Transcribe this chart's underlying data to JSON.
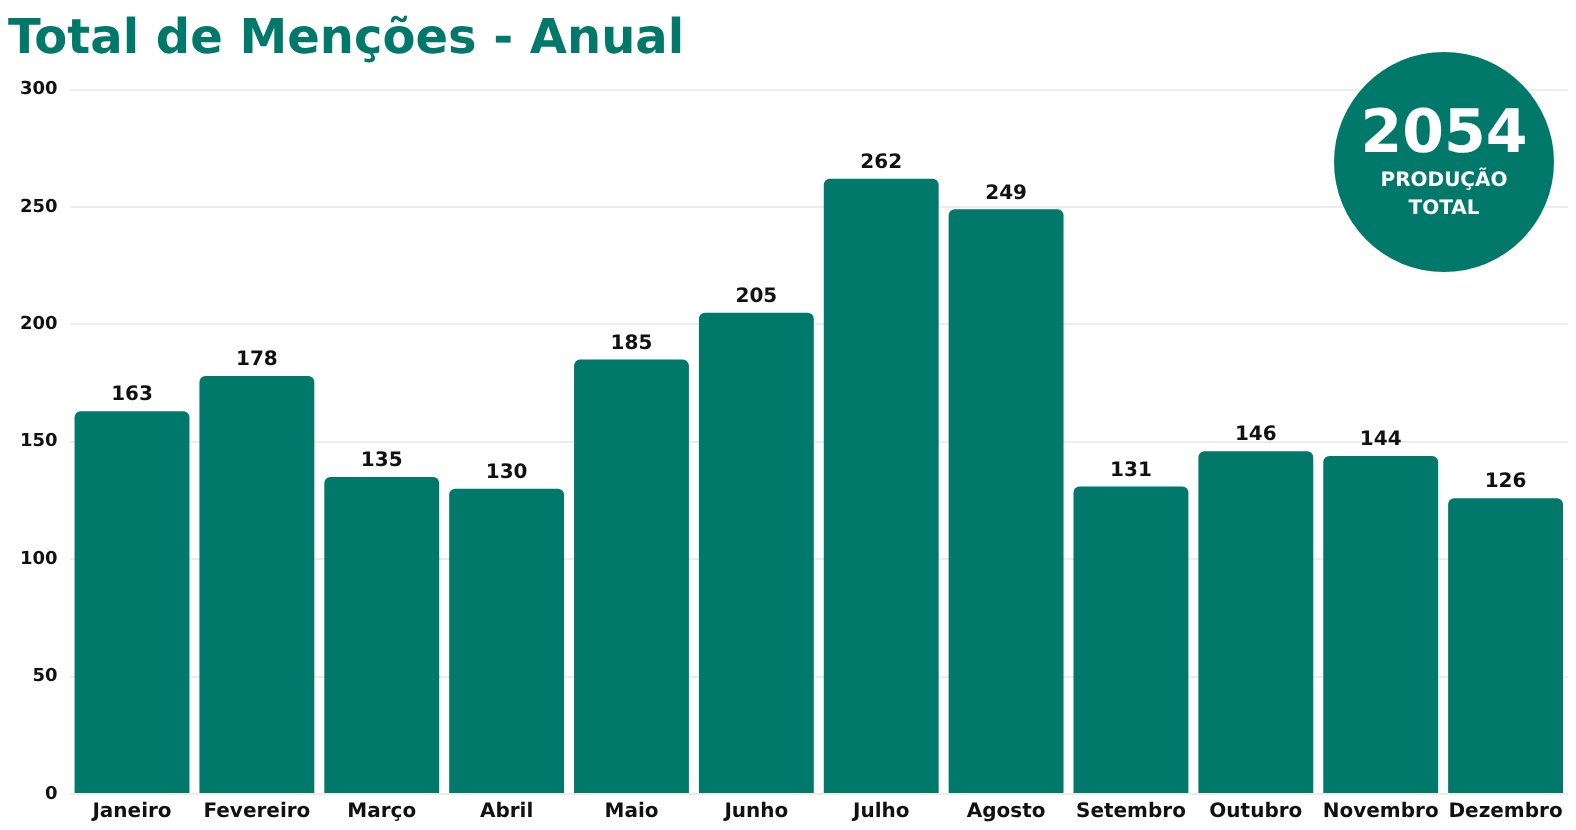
{
  "chart_data": {
    "type": "bar",
    "title": "Total de Menções - Anual",
    "categories": [
      "Janeiro",
      "Fevereiro",
      "Março",
      "Abril",
      "Maio",
      "Junho",
      "Julho",
      "Agosto",
      "Setembro",
      "Outubro",
      "Novembro",
      "Dezembro"
    ],
    "values": [
      163,
      178,
      135,
      130,
      185,
      205,
      262,
      249,
      131,
      146,
      144,
      126
    ],
    "color": "#00786a",
    "ylim": [
      0,
      300
    ],
    "yticks": [
      0,
      50,
      100,
      150,
      200,
      250,
      300
    ],
    "grid": "y",
    "data_labels": true,
    "legend": false,
    "annotations": [
      "2054",
      "PRODUÇÃO TOTAL"
    ]
  }
}
